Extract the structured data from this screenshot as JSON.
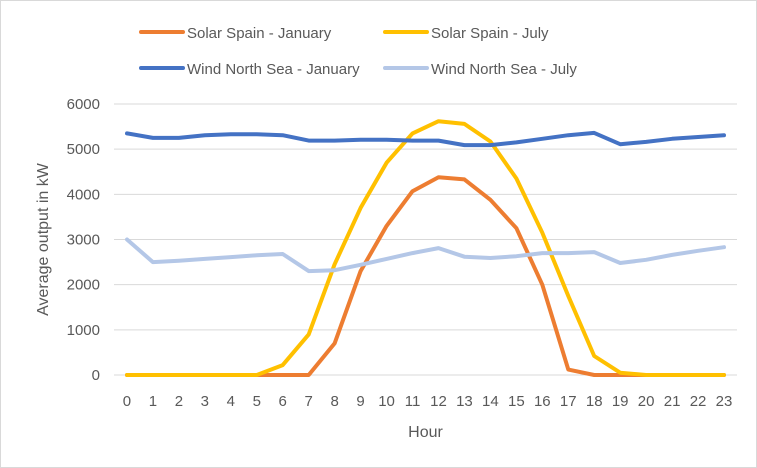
{
  "chart_data": {
    "type": "line",
    "title": "",
    "xlabel": "Hour",
    "ylabel": "Average output in kW",
    "x": [
      0,
      1,
      2,
      3,
      4,
      5,
      6,
      7,
      8,
      9,
      10,
      11,
      12,
      13,
      14,
      15,
      16,
      17,
      18,
      19,
      20,
      21,
      22,
      23
    ],
    "ylim": [
      0,
      6000
    ],
    "yticks": [
      0,
      1000,
      2000,
      3000,
      4000,
      5000,
      6000
    ],
    "grid": true,
    "legend_position": "top",
    "series": [
      {
        "name": "Solar Spain - January",
        "color": "#ED7D31",
        "values": [
          0,
          0,
          0,
          0,
          0,
          0,
          0,
          0,
          700,
          2300,
          3300,
          4070,
          4380,
          4330,
          3880,
          3250,
          2000,
          120,
          0,
          0,
          0,
          0,
          0,
          0
        ]
      },
      {
        "name": "Solar Spain - July",
        "color": "#FFC000",
        "values": [
          0,
          0,
          0,
          0,
          0,
          0,
          220,
          900,
          2450,
          3700,
          4700,
          5350,
          5620,
          5560,
          5170,
          4350,
          3150,
          1750,
          420,
          50,
          0,
          0,
          0,
          0
        ]
      },
      {
        "name": "Wind North Sea - January",
        "color": "#4472C4",
        "values": [
          5350,
          5250,
          5250,
          5310,
          5330,
          5330,
          5310,
          5190,
          5190,
          5210,
          5210,
          5190,
          5190,
          5090,
          5090,
          5150,
          5230,
          5310,
          5360,
          5110,
          5160,
          5230,
          5270,
          5310
        ]
      },
      {
        "name": "Wind North Sea - July",
        "color": "#B4C7E7",
        "values": [
          3000,
          2500,
          2530,
          2570,
          2610,
          2650,
          2680,
          2300,
          2320,
          2440,
          2570,
          2700,
          2810,
          2620,
          2590,
          2630,
          2700,
          2700,
          2720,
          2480,
          2550,
          2660,
          2750,
          2830
        ]
      }
    ]
  }
}
